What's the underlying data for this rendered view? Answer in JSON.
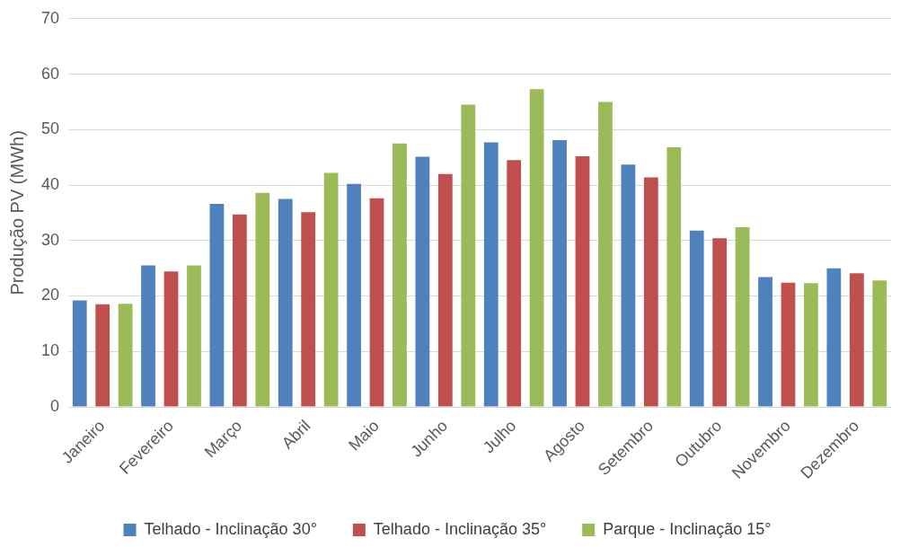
{
  "chart_data": {
    "type": "bar",
    "ylabel": "Produção PV (MWh)",
    "categories": [
      "Janeiro",
      "Fevereiro",
      "Março",
      "Abril",
      "Maio",
      "Junho",
      "Julho",
      "Agosto",
      "Setembro",
      "Outubro",
      "Novembro",
      "Dezembro"
    ],
    "series": [
      {
        "name": "Telhado - Inclinação 30°",
        "color": "#4f81bd",
        "values": [
          19.2,
          25.5,
          36.6,
          37.5,
          40.2,
          45.1,
          47.7,
          48.1,
          43.7,
          31.8,
          23.4,
          25.0
        ]
      },
      {
        "name": "Telhado - Inclinação 35°",
        "color": "#c0504d",
        "values": [
          18.5,
          24.4,
          34.7,
          35.1,
          37.6,
          42.0,
          44.5,
          45.2,
          41.4,
          30.4,
          22.4,
          24.1
        ]
      },
      {
        "name": "Parque - Inclinação 15°",
        "color": "#9bbb59",
        "values": [
          18.6,
          25.5,
          38.6,
          42.2,
          47.5,
          54.5,
          57.3,
          55.0,
          46.8,
          32.4,
          22.3,
          22.8
        ]
      }
    ],
    "ylim": [
      0,
      70
    ],
    "yticks": [
      0,
      10,
      20,
      30,
      40,
      50,
      60,
      70
    ],
    "grid": "y",
    "legend": "bottom"
  }
}
